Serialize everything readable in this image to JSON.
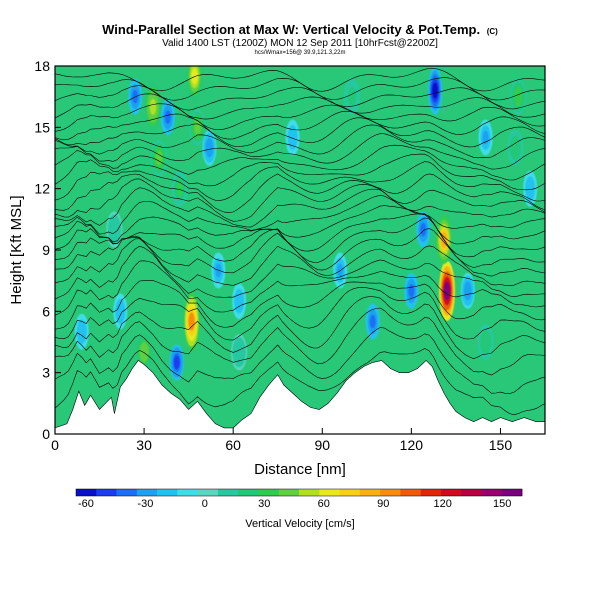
{
  "chart_data": {
    "type": "heatmap",
    "title": "Wind-Parallel Section at Max W: Vertical Velocity & Pot.Temp.",
    "title_mark": "(C)",
    "subtitle": "Valid 1400 LST (1200Z) MON 12 Sep 2011 [10hrFcst@2200Z]",
    "stamp": "hcs/Wmax=156@ 39.9,121.3,22m",
    "xlabel": "Distance [nm]",
    "ylabel": "Height [Kft MSL]",
    "xlim": [
      0,
      165
    ],
    "ylim": [
      0,
      18
    ],
    "x_ticks": [
      0,
      30,
      60,
      90,
      120,
      150
    ],
    "y_ticks": [
      0,
      3,
      6,
      9,
      12,
      15,
      18
    ],
    "colorbar": {
      "label": "Vertical Velocity [cm/s]",
      "tick_values": [
        -60,
        -30,
        0,
        30,
        60,
        90,
        120,
        150
      ],
      "range": [
        -65,
        160
      ],
      "colors": [
        "#0a10c8",
        "#1c3cf0",
        "#1e6ef5",
        "#1fa0f0",
        "#22c2f0",
        "#3fdde8",
        "#5cd6c0",
        "#28c8a0",
        "#20c878",
        "#30cc50",
        "#60d040",
        "#b0e020",
        "#e8e81c",
        "#f8d018",
        "#f8b014",
        "#f88c10",
        "#f05a0c",
        "#e02808",
        "#d00820",
        "#b80040",
        "#9a0070",
        "#7a0080"
      ]
    },
    "terrain_kft": [
      [
        0,
        0.3
      ],
      [
        4,
        0.5
      ],
      [
        6,
        1.2
      ],
      [
        8,
        2.1
      ],
      [
        10,
        1.4
      ],
      [
        12,
        1.9
      ],
      [
        15,
        1.2
      ],
      [
        17,
        1.5
      ],
      [
        19,
        1.8
      ],
      [
        20,
        1.0
      ],
      [
        22,
        2.3
      ],
      [
        24,
        2.7
      ],
      [
        26,
        3.2
      ],
      [
        28,
        3.6
      ],
      [
        30,
        3.4
      ],
      [
        33,
        3.0
      ],
      [
        36,
        2.4
      ],
      [
        39,
        2.0
      ],
      [
        42,
        1.7
      ],
      [
        45,
        1.2
      ],
      [
        48,
        1.6
      ],
      [
        51,
        1.0
      ],
      [
        54,
        0.5
      ],
      [
        57,
        0.3
      ],
      [
        60,
        0.3
      ],
      [
        63,
        0.7
      ],
      [
        66,
        1.0
      ],
      [
        69,
        1.8
      ],
      [
        72,
        2.4
      ],
      [
        75,
        2.9
      ],
      [
        77,
        2.4
      ],
      [
        80,
        2.0
      ],
      [
        83,
        1.6
      ],
      [
        86,
        1.3
      ],
      [
        89,
        1.2
      ],
      [
        92,
        1.5
      ],
      [
        95,
        2.0
      ],
      [
        98,
        2.6
      ],
      [
        101,
        3.0
      ],
      [
        104,
        3.3
      ],
      [
        107,
        3.5
      ],
      [
        110,
        3.6
      ],
      [
        113,
        3.2
      ],
      [
        116,
        3.0
      ],
      [
        119,
        3.0
      ],
      [
        122,
        3.2
      ],
      [
        125,
        3.6
      ],
      [
        127,
        3.3
      ],
      [
        129,
        2.6
      ],
      [
        131,
        2.0
      ],
      [
        133,
        1.5
      ],
      [
        135,
        1.1
      ],
      [
        138,
        0.8
      ],
      [
        141,
        0.6
      ],
      [
        144,
        0.8
      ],
      [
        147,
        0.6
      ],
      [
        150,
        0.8
      ],
      [
        154,
        0.6
      ],
      [
        158,
        0.8
      ],
      [
        162,
        0.6
      ],
      [
        165,
        0.6
      ]
    ],
    "updraft_cells": [
      {
        "x": 132,
        "z": 7.0,
        "w": 150
      },
      {
        "x": 131,
        "z": 9.5,
        "w": 80
      },
      {
        "x": 46,
        "z": 5.5,
        "w": 90
      },
      {
        "x": 47,
        "z": 17.5,
        "w": 60
      },
      {
        "x": 48,
        "z": 15.0,
        "w": 40
      },
      {
        "x": 42,
        "z": 12.0,
        "w": 30
      },
      {
        "x": 33,
        "z": 16.0,
        "w": 55
      },
      {
        "x": 35,
        "z": 13.5,
        "w": 40
      },
      {
        "x": 30,
        "z": 4.0,
        "w": 45
      },
      {
        "x": 156,
        "z": 16.5,
        "w": 35
      },
      {
        "x": 155,
        "z": 14.0,
        "w": 25
      },
      {
        "x": 100,
        "z": 16.5,
        "w": 20
      },
      {
        "x": 20,
        "z": 10.0,
        "w": 15
      },
      {
        "x": 145,
        "z": 4.5,
        "w": 25
      },
      {
        "x": 62,
        "z": 4.0,
        "w": 15
      }
    ],
    "downdraft_cells": [
      {
        "x": 41,
        "z": 3.5,
        "w": -45
      },
      {
        "x": 38,
        "z": 15.5,
        "w": -40
      },
      {
        "x": 52,
        "z": 14.0,
        "w": -30
      },
      {
        "x": 128,
        "z": 16.8,
        "w": -55
      },
      {
        "x": 124,
        "z": 10.0,
        "w": -40
      },
      {
        "x": 27,
        "z": 16.5,
        "w": -35
      },
      {
        "x": 107,
        "z": 5.5,
        "w": -35
      },
      {
        "x": 96,
        "z": 8.0,
        "w": -25
      },
      {
        "x": 120,
        "z": 7.0,
        "w": -40
      },
      {
        "x": 139,
        "z": 7.0,
        "w": -30
      },
      {
        "x": 55,
        "z": 8.0,
        "w": -25
      },
      {
        "x": 62,
        "z": 6.5,
        "w": -20
      },
      {
        "x": 80,
        "z": 14.5,
        "w": -20
      },
      {
        "x": 9,
        "z": 5.0,
        "w": -20
      },
      {
        "x": 22,
        "z": 6.0,
        "w": -20
      },
      {
        "x": 145,
        "z": 14.5,
        "w": -25
      },
      {
        "x": 160,
        "z": 12.0,
        "w": -20
      }
    ],
    "isentropes_kft": [
      1.0,
      2.0,
      3.0,
      3.8,
      4.6,
      5.3,
      6.0,
      6.6,
      7.2,
      7.8,
      8.3,
      8.8,
      9.3,
      9.8,
      10.3,
      10.8,
      11.3,
      11.8,
      12.3,
      12.8,
      13.3,
      13.8,
      14.3,
      14.8,
      15.3,
      15.8,
      16.3,
      16.8,
      17.3
    ]
  }
}
